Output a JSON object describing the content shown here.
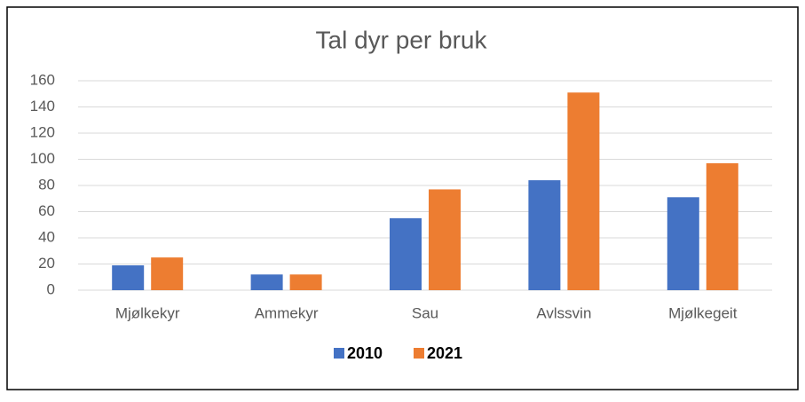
{
  "chart_data": {
    "type": "bar",
    "title": "Tal dyr per bruk",
    "categories": [
      "Mjølkekyr",
      "Ammekyr",
      "Sau",
      "Avlssvin",
      "Mjølkegeit"
    ],
    "series": [
      {
        "name": "2010",
        "color": "#4472c4",
        "values": [
          19,
          12,
          55,
          84,
          71
        ]
      },
      {
        "name": "2021",
        "color": "#ed7d31",
        "values": [
          25,
          12,
          77,
          151,
          97
        ]
      }
    ],
    "ylim": [
      0,
      160
    ],
    "yticks": [
      0,
      20,
      40,
      60,
      80,
      100,
      120,
      140,
      160
    ],
    "grid": true,
    "legend": "bottom"
  }
}
